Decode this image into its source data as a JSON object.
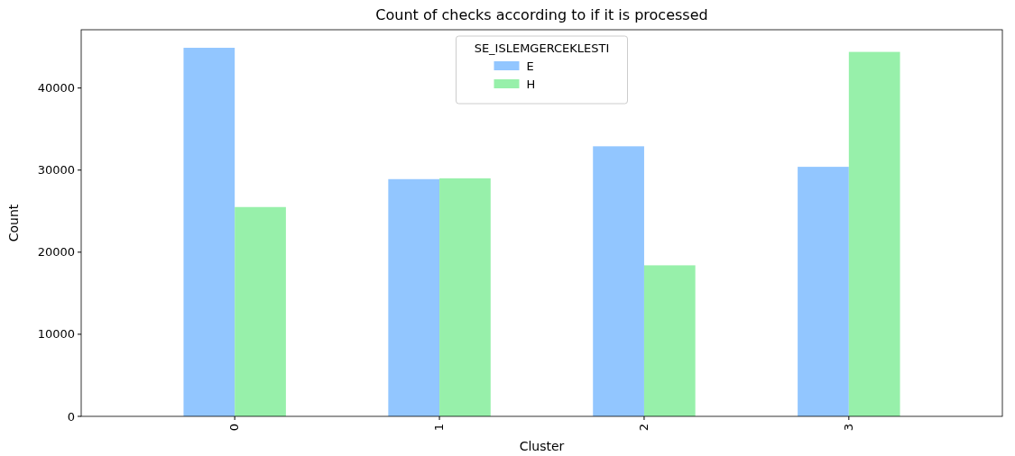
{
  "chart_data": {
    "type": "bar",
    "title": "Count of checks according to if it is processed",
    "xlabel": "Cluster",
    "ylabel": "Count",
    "legend_title": "SE_ISLEMGERCEKLESTI",
    "categories": [
      "0",
      "1",
      "2",
      "3"
    ],
    "series": [
      {
        "name": "E",
        "color": "#92c6ff",
        "values": [
          44900,
          28900,
          32900,
          30400
        ]
      },
      {
        "name": "H",
        "color": "#97f0aa",
        "values": [
          25500,
          29000,
          18400,
          44400
        ]
      }
    ],
    "ylim": [
      0,
      47100
    ],
    "yticks": [
      0,
      10000,
      20000,
      30000,
      40000
    ],
    "legend": "top",
    "grid": false
  }
}
